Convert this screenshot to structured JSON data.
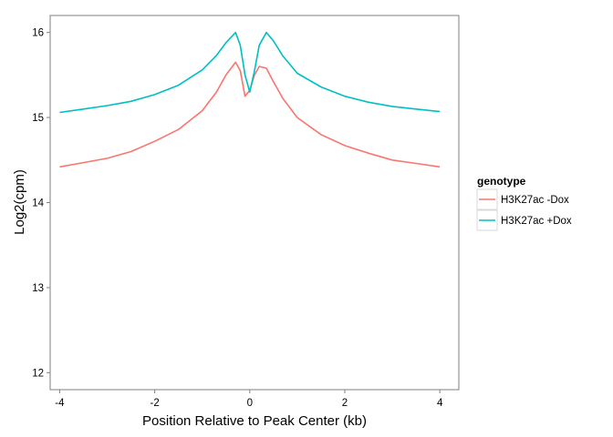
{
  "chart_data": {
    "type": "line",
    "title": "",
    "xlabel": "Position Relative to Peak Center (kb)",
    "ylabel": "Log2(cpm)",
    "xlim": [
      -4.2,
      4.4
    ],
    "ylim": [
      11.8,
      16.2
    ],
    "x_ticks": [
      -4,
      -2,
      0,
      2,
      4
    ],
    "x_tick_labels": [
      "-4",
      "-2",
      "0",
      "2",
      "4"
    ],
    "y_ticks": [
      12,
      13,
      14,
      15,
      16
    ],
    "y_tick_labels": [
      "12",
      "13",
      "14",
      "15",
      "16"
    ],
    "grid": false,
    "legend": {
      "title": "genotype",
      "position": "right"
    },
    "x": [
      -4.0,
      -3.5,
      -3.0,
      -2.5,
      -2.0,
      -1.5,
      -1.0,
      -0.7,
      -0.5,
      -0.3,
      -0.2,
      -0.1,
      0.0,
      0.1,
      0.2,
      0.35,
      0.5,
      0.7,
      1.0,
      1.5,
      2.0,
      2.5,
      3.0,
      3.5,
      4.0
    ],
    "series": [
      {
        "name": "H3K27ac -Dox",
        "color": "#F8766D",
        "values": [
          14.42,
          14.47,
          14.52,
          14.6,
          14.72,
          14.86,
          15.08,
          15.3,
          15.5,
          15.65,
          15.55,
          15.25,
          15.32,
          15.5,
          15.6,
          15.58,
          15.42,
          15.22,
          15.0,
          14.8,
          14.67,
          14.58,
          14.5,
          14.46,
          14.42
        ]
      },
      {
        "name": "H3K27ac +Dox",
        "color": "#00BFC4",
        "values": [
          15.06,
          15.1,
          15.14,
          15.19,
          15.27,
          15.38,
          15.56,
          15.73,
          15.88,
          16.0,
          15.85,
          15.5,
          15.3,
          15.55,
          15.85,
          16.0,
          15.9,
          15.72,
          15.52,
          15.36,
          15.25,
          15.18,
          15.13,
          15.1,
          15.07
        ]
      }
    ]
  }
}
